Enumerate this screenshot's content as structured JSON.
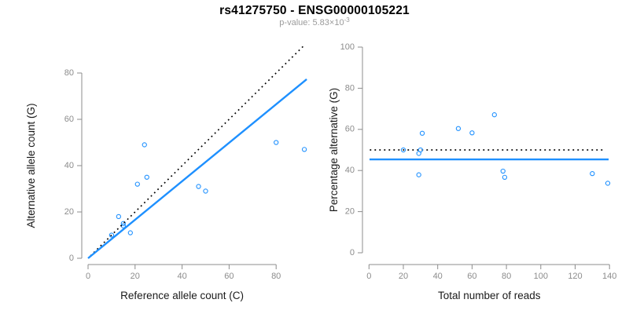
{
  "header": {
    "title": "rs41275750 - ENSG00000105221",
    "subtitle_base": "p-value: 5.83×10",
    "subtitle_exponent": "-3"
  },
  "colors": {
    "point": "#1E90FF",
    "fit_line": "#1E90FF",
    "reference_line": "#000000",
    "axis": "#8c8c8c",
    "tick_label": "#8c8c8c",
    "axis_title": "#1a1a1a",
    "title": "#000000",
    "subtitle": "#9b9b9b"
  },
  "chart_data": [
    {
      "type": "scatter",
      "panel": "left",
      "title": "",
      "xlabel": "Reference allele count (C)",
      "ylabel": "Alternative allele count (G)",
      "xlim": [
        0,
        95
      ],
      "ylim": [
        0,
        85
      ],
      "xticks": [
        0,
        20,
        40,
        60,
        80
      ],
      "yticks": [
        0,
        20,
        40,
        60,
        80
      ],
      "grid": false,
      "legend": "none",
      "points": [
        [
          10,
          10
        ],
        [
          13,
          18
        ],
        [
          15,
          14
        ],
        [
          15,
          15
        ],
        [
          18,
          11
        ],
        [
          21,
          32
        ],
        [
          24,
          49
        ],
        [
          25,
          35
        ],
        [
          47,
          31
        ],
        [
          50,
          29
        ],
        [
          80,
          50
        ],
        [
          92,
          47
        ]
      ],
      "lines": [
        {
          "name": "identity-line",
          "style": "dotted",
          "color": "#000000",
          "from": [
            1,
            1
          ],
          "to": [
            92,
            92
          ]
        },
        {
          "name": "regression-line",
          "style": "solid",
          "color": "#1E90FF",
          "from": [
            0,
            0
          ],
          "to": [
            93,
            77.3
          ]
        }
      ],
      "lines_on_top": true
    },
    {
      "type": "scatter",
      "panel": "right",
      "title": "",
      "xlabel": "Total number of reads",
      "ylabel": "Percentage alternative (G)",
      "xlim": [
        0,
        143
      ],
      "ylim": [
        0,
        100
      ],
      "xticks": [
        0,
        20,
        40,
        60,
        80,
        100,
        120,
        140
      ],
      "yticks": [
        0,
        20,
        40,
        60,
        80,
        100
      ],
      "grid": false,
      "legend": "none",
      "points": [
        [
          20,
          50
        ],
        [
          29,
          37.9
        ],
        [
          29,
          48.3
        ],
        [
          30,
          50
        ],
        [
          31,
          58.1
        ],
        [
          52,
          60.4
        ],
        [
          60,
          58.3
        ],
        [
          73,
          67.1
        ],
        [
          78,
          39.7
        ],
        [
          79,
          36.7
        ],
        [
          130,
          38.5
        ],
        [
          139,
          33.8
        ]
      ],
      "lines": [
        {
          "name": "null-line",
          "style": "dotted",
          "color": "#000000",
          "from": [
            0.5,
            50
          ],
          "to": [
            136,
            50
          ]
        },
        {
          "name": "mean-line",
          "style": "solid",
          "color": "#1E90FF",
          "from": [
            0.3,
            45.4
          ],
          "to": [
            139.5,
            45.4
          ]
        }
      ],
      "lines_on_top": false
    }
  ]
}
